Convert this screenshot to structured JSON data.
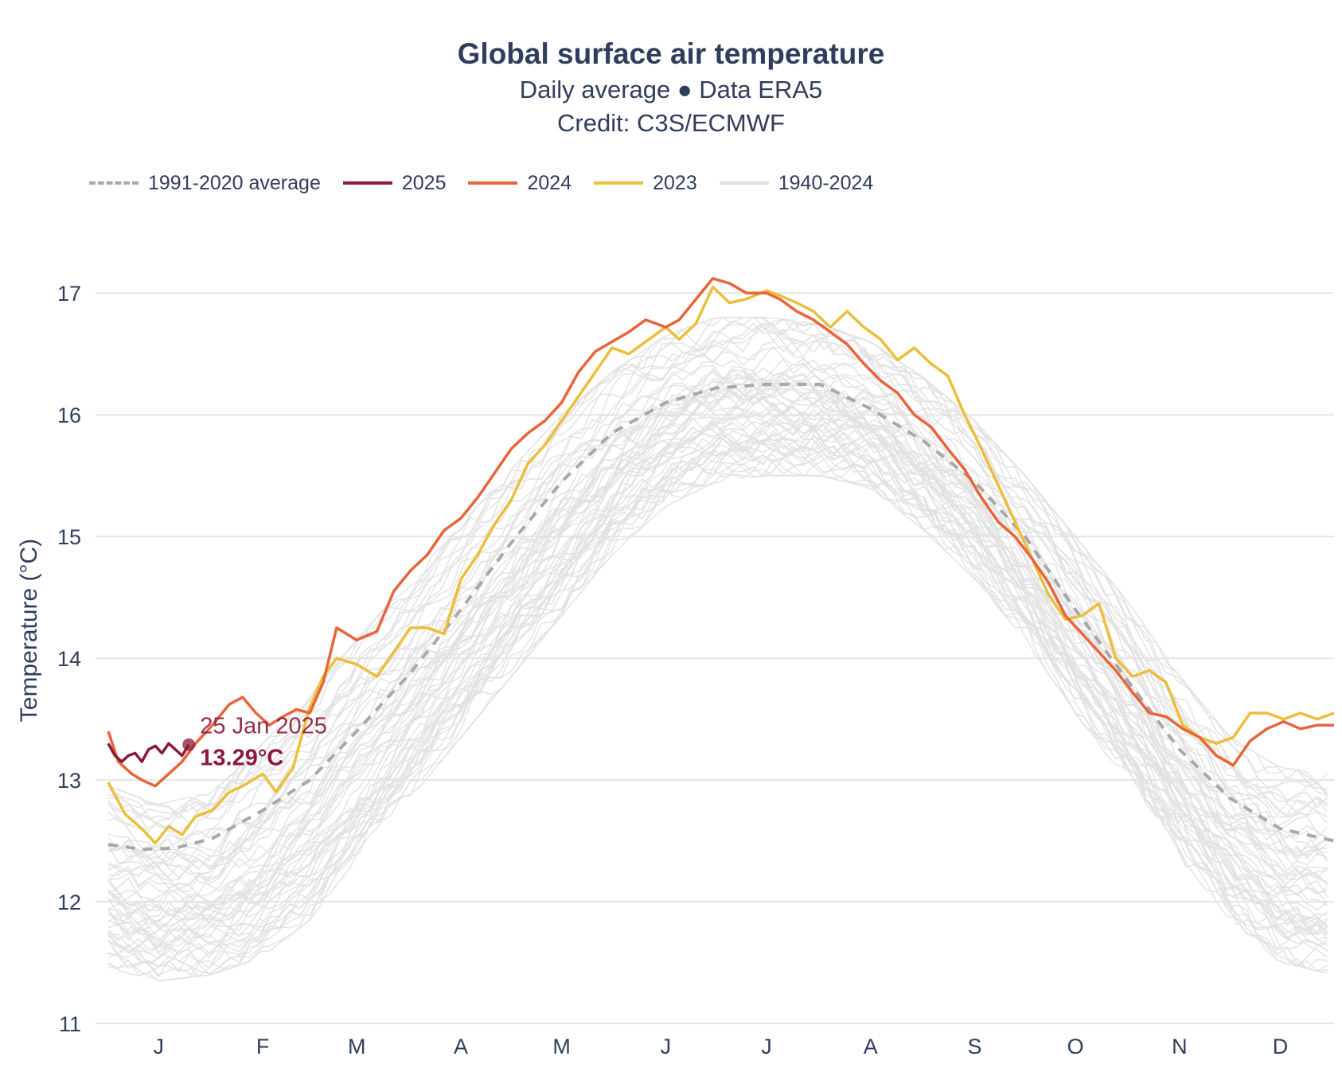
{
  "chart_data": {
    "type": "line",
    "title": "Global surface air temperature",
    "subtitle_lines": [
      "Daily average ● Data ERA5",
      "Credit: C3S/ECMWF"
    ],
    "ylabel": "Temperature (°C)",
    "xlabel": "",
    "ylim": [
      11,
      17.25
    ],
    "xlim": [
      0,
      365
    ],
    "yticks": [
      11,
      12,
      13,
      14,
      15,
      16,
      17
    ],
    "month_ticks": [
      {
        "label": "J",
        "day": 15
      },
      {
        "label": "F",
        "day": 46
      },
      {
        "label": "M",
        "day": 74
      },
      {
        "label": "A",
        "day": 105
      },
      {
        "label": "M",
        "day": 135
      },
      {
        "label": "J",
        "day": 166
      },
      {
        "label": "J",
        "day": 196
      },
      {
        "label": "A",
        "day": 227
      },
      {
        "label": "S",
        "day": 258
      },
      {
        "label": "O",
        "day": 288
      },
      {
        "label": "N",
        "day": 319
      },
      {
        "label": "D",
        "day": 349
      }
    ],
    "legend": [
      {
        "label": "1991-2020 average",
        "color": "#a8a8a8",
        "style": "dashed"
      },
      {
        "label": "2025",
        "color": "#8b1a3a",
        "style": "solid"
      },
      {
        "label": "2024",
        "color": "#e8643a",
        "style": "solid"
      },
      {
        "label": "2023",
        "color": "#ecbe3c",
        "style": "solid"
      },
      {
        "label": "1940-2024",
        "color": "#e0e0e0",
        "style": "solid"
      }
    ],
    "series": [
      {
        "name": "1940-2024 envelope",
        "color": "#e0e0e0",
        "days": [
          0,
          15,
          31,
          46,
          60,
          74,
          90,
          105,
          120,
          135,
          150,
          166,
          181,
          196,
          212,
          227,
          243,
          258,
          273,
          288,
          304,
          319,
          334,
          349,
          365
        ],
        "lower": [
          11.5,
          11.4,
          11.45,
          11.6,
          11.9,
          12.4,
          12.9,
          13.4,
          13.9,
          14.4,
          14.9,
          15.3,
          15.5,
          15.55,
          15.55,
          15.45,
          15.1,
          14.7,
          14.2,
          13.6,
          13.0,
          12.4,
          11.9,
          11.55,
          11.45
        ],
        "upper": [
          12.9,
          12.75,
          12.85,
          13.25,
          13.65,
          14.1,
          14.6,
          15.05,
          15.5,
          15.95,
          16.3,
          16.6,
          16.75,
          16.75,
          16.7,
          16.55,
          16.25,
          15.9,
          15.45,
          14.95,
          14.4,
          13.8,
          13.3,
          13.05,
          13.0
        ]
      },
      {
        "name": "1991-2020 average",
        "color": "#a8a8a8",
        "days": [
          0,
          10,
          20,
          31,
          46,
          60,
          74,
          90,
          105,
          120,
          135,
          150,
          166,
          181,
          196,
          212,
          227,
          243,
          258,
          273,
          288,
          304,
          319,
          334,
          349,
          365
        ],
        "values": [
          12.47,
          12.43,
          12.44,
          12.52,
          12.75,
          13.0,
          13.4,
          13.88,
          14.4,
          14.95,
          15.45,
          15.85,
          16.1,
          16.22,
          16.25,
          16.25,
          16.05,
          15.78,
          15.45,
          15.0,
          14.4,
          13.8,
          13.25,
          12.85,
          12.6,
          12.5
        ]
      },
      {
        "name": "2023",
        "color": "#ecbe3c",
        "days": [
          0,
          5,
          10,
          14,
          18,
          22,
          26,
          31,
          36,
          40,
          46,
          50,
          55,
          60,
          64,
          68,
          74,
          80,
          85,
          90,
          95,
          100,
          105,
          110,
          115,
          120,
          125,
          130,
          135,
          140,
          145,
          150,
          155,
          160,
          166,
          170,
          175,
          180,
          185,
          190,
          196,
          200,
          205,
          210,
          215,
          220,
          225,
          230,
          235,
          240,
          245,
          250,
          255,
          260,
          265,
          270,
          275,
          280,
          285,
          290,
          295,
          300,
          305,
          310,
          315,
          320,
          325,
          330,
          335,
          340,
          345,
          350,
          355,
          360,
          365
        ],
        "values": [
          12.98,
          12.72,
          12.6,
          12.48,
          12.62,
          12.55,
          12.7,
          12.75,
          12.9,
          12.95,
          13.05,
          12.9,
          13.1,
          13.6,
          13.85,
          14.0,
          13.95,
          13.85,
          14.05,
          14.25,
          14.25,
          14.2,
          14.65,
          14.85,
          15.1,
          15.3,
          15.6,
          15.75,
          15.95,
          16.15,
          16.35,
          16.55,
          16.5,
          16.6,
          16.72,
          16.62,
          16.75,
          17.05,
          16.92,
          16.95,
          17.02,
          16.98,
          16.92,
          16.85,
          16.72,
          16.85,
          16.72,
          16.62,
          16.45,
          16.55,
          16.42,
          16.32,
          16.0,
          15.72,
          15.42,
          15.12,
          14.82,
          14.52,
          14.32,
          14.35,
          14.45,
          14.0,
          13.85,
          13.9,
          13.8,
          13.45,
          13.35,
          13.3,
          13.35,
          13.55,
          13.55,
          13.5,
          13.55,
          13.5,
          13.55
        ]
      },
      {
        "name": "2024",
        "color": "#e8643a",
        "days": [
          0,
          3,
          7,
          10,
          14,
          18,
          22,
          26,
          31,
          36,
          40,
          44,
          48,
          52,
          56,
          60,
          64,
          68,
          74,
          80,
          85,
          90,
          95,
          100,
          105,
          110,
          115,
          120,
          125,
          130,
          135,
          140,
          145,
          150,
          155,
          160,
          166,
          170,
          175,
          180,
          185,
          190,
          196,
          200,
          205,
          210,
          215,
          220,
          225,
          230,
          235,
          240,
          245,
          250,
          255,
          260,
          265,
          270,
          275,
          280,
          285,
          290,
          295,
          300,
          305,
          310,
          315,
          320,
          325,
          330,
          335,
          340,
          345,
          350,
          355,
          360,
          365
        ],
        "values": [
          13.4,
          13.15,
          13.05,
          13.0,
          12.95,
          13.05,
          13.15,
          13.3,
          13.45,
          13.62,
          13.68,
          13.55,
          13.45,
          13.52,
          13.58,
          13.55,
          13.8,
          14.25,
          14.15,
          14.22,
          14.55,
          14.72,
          14.85,
          15.05,
          15.15,
          15.32,
          15.52,
          15.72,
          15.85,
          15.95,
          16.1,
          16.35,
          16.52,
          16.6,
          16.68,
          16.78,
          16.72,
          16.78,
          16.95,
          17.12,
          17.08,
          17.0,
          17.0,
          16.95,
          16.85,
          16.78,
          16.68,
          16.58,
          16.42,
          16.28,
          16.18,
          16.0,
          15.9,
          15.72,
          15.55,
          15.32,
          15.12,
          15.0,
          14.82,
          14.62,
          14.35,
          14.2,
          14.05,
          13.9,
          13.72,
          13.55,
          13.52,
          13.42,
          13.35,
          13.2,
          13.12,
          13.32,
          13.42,
          13.48,
          13.42,
          13.45,
          13.45
        ]
      },
      {
        "name": "2025",
        "color": "#8b1a3a",
        "days": [
          0,
          2,
          4,
          6,
          8,
          10,
          12,
          14,
          16,
          18,
          20,
          22,
          24
        ],
        "values": [
          13.3,
          13.2,
          13.15,
          13.2,
          13.22,
          13.15,
          13.25,
          13.28,
          13.22,
          13.3,
          13.25,
          13.2,
          13.29
        ]
      }
    ],
    "annotation": {
      "date": "25 Jan 2025",
      "value_label": "13.29°C",
      "day": 24,
      "value": 13.29,
      "color": "#8b1a3a"
    }
  }
}
